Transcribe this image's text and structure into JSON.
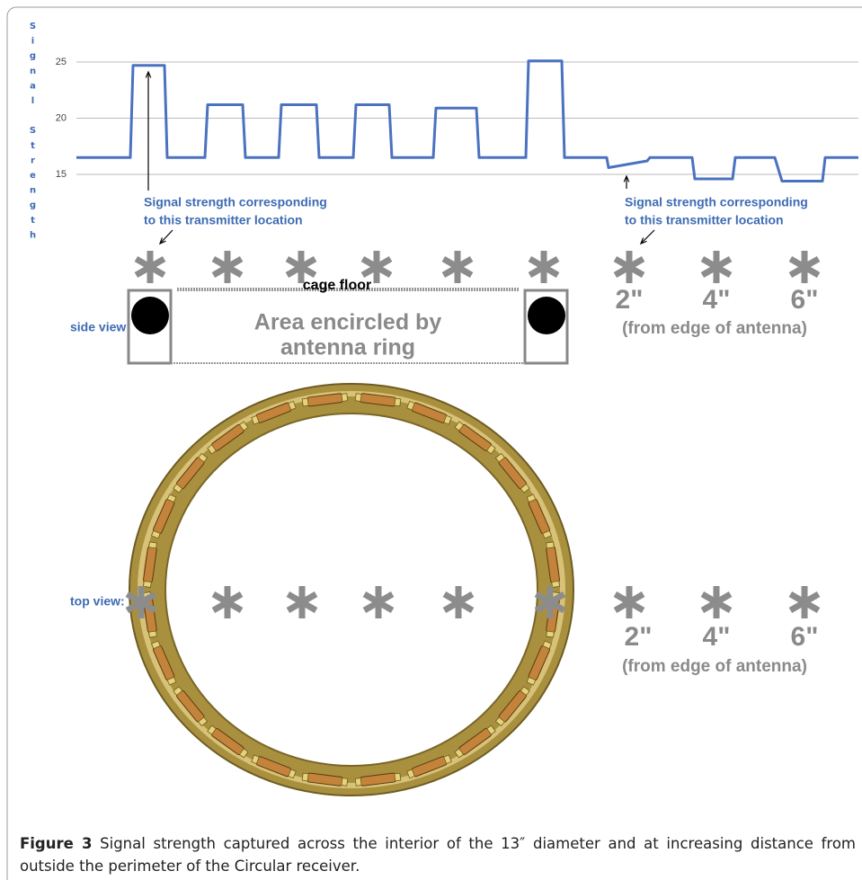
{
  "chart_data": {
    "type": "line",
    "y_label": "Signal Strength",
    "x": [
      0,
      6.0,
      6.3,
      9.8,
      10.1,
      14.3,
      14.6,
      18.5,
      18.8,
      22.5,
      22.8,
      26.7,
      27.0,
      30.8,
      31.1,
      34.8,
      35.1,
      39.7,
      40.0,
      44.5,
      44.8,
      50.0,
      50.3,
      54.0,
      54.3,
      59.0,
      59.2,
      63.5,
      63.8,
      68.5,
      68.8,
      73.0,
      73.3,
      77.7,
      78.5,
      83.0,
      83.3,
      87
    ],
    "values": [
      16.5,
      16.5,
      24.7,
      24.7,
      16.5,
      16.5,
      21.2,
      21.2,
      16.5,
      16.5,
      21.2,
      21.2,
      16.5,
      16.5,
      21.2,
      21.2,
      16.5,
      16.5,
      20.9,
      20.9,
      16.5,
      16.5,
      25.1,
      25.1,
      16.5,
      16.5,
      15.6,
      16.2,
      16.5,
      16.5,
      14.6,
      14.6,
      16.5,
      16.5,
      14.4,
      14.4,
      16.5,
      16.5
    ],
    "color": "#4a72c0",
    "xlim": [
      0,
      87
    ],
    "ylim": [
      14,
      28
    ],
    "yticks": [
      15,
      20,
      25
    ],
    "grid": true,
    "annotations": [
      [
        "Signal strength corresponding",
        "to this transmitter location"
      ],
      [
        "Signal strength corresponding",
        "to this transmitter location"
      ]
    ]
  },
  "side_view": {
    "label": "side view:",
    "floor_label": "cage floor",
    "area_label": [
      "Area encircled by",
      "antenna ring"
    ],
    "distances": [
      "2\"",
      "4\"",
      "6\""
    ],
    "distance_note": "(from edge of antenna)"
  },
  "top_view": {
    "label": "top view:",
    "distances": [
      "2\"",
      "4\"",
      "6\""
    ],
    "distance_note": "(from edge of antenna)"
  },
  "caption": {
    "figure": "Figure 3",
    "text": "Signal strength captured across the interior of the 13″ diameter and at increasing distance from outside the perimeter of the Circular receiver."
  }
}
